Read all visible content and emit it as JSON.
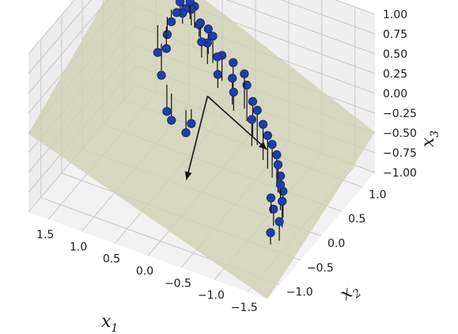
{
  "chart_data": {
    "type": "scatter",
    "subtype": "3d-scatter-with-projection-plane",
    "title": "",
    "axes": {
      "x": {
        "label_base": "x",
        "label_sub": "1",
        "range": [
          -1.8,
          1.8
        ],
        "ticks": [
          "−1.5",
          "−1.0",
          "−0.5",
          "0.0",
          "0.5",
          "1.0",
          "1.5"
        ],
        "tick_values": [
          -1.5,
          -1.0,
          -0.5,
          0.0,
          0.5,
          1.0,
          1.5
        ]
      },
      "y": {
        "label_base": "x",
        "label_sub": "2",
        "range": [
          -1.3,
          1.3
        ],
        "ticks": [
          "−1.0",
          "−0.5",
          "0.0",
          "0.5",
          "1.0"
        ],
        "tick_values": [
          -1.0,
          -0.5,
          0.0,
          0.5,
          1.0
        ]
      },
      "z": {
        "label_base": "x",
        "label_sub": "3",
        "range": [
          -1.0,
          1.0
        ],
        "ticks": [
          "−1.00",
          "−0.75",
          "−0.50",
          "−0.25",
          "0.00",
          "0.25",
          "0.50",
          "0.75",
          "1.00"
        ],
        "tick_values": [
          -1.0,
          -0.75,
          -0.5,
          -0.25,
          0.0,
          0.25,
          0.5,
          0.75,
          1.0
        ]
      }
    },
    "grid": true,
    "colors": {
      "points": "#1f3fa8",
      "plane": "#cfcfb2",
      "arrows": "#111111",
      "pane": "#f2f2f2"
    },
    "points": [
      {
        "x": -1.4,
        "y": -0.3,
        "z": -0.5
      },
      {
        "x": -1.35,
        "y": -0.2,
        "z": -0.45
      },
      {
        "x": -1.3,
        "y": -0.35,
        "z": -0.6
      },
      {
        "x": -1.45,
        "y": -0.45,
        "z": -0.65
      },
      {
        "x": -1.25,
        "y": -0.1,
        "z": -0.35
      },
      {
        "x": -1.2,
        "y": -0.25,
        "z": -0.55
      },
      {
        "x": -1.38,
        "y": -0.55,
        "z": -0.75
      },
      {
        "x": -1.15,
        "y": 0.0,
        "z": -0.3
      },
      {
        "x": -1.0,
        "y": 0.1,
        "z": -0.15
      },
      {
        "x": -0.9,
        "y": 0.15,
        "z": -0.1
      },
      {
        "x": -0.8,
        "y": 0.2,
        "z": -0.02
      },
      {
        "x": -0.65,
        "y": 0.3,
        "z": 0.05
      },
      {
        "x": -0.55,
        "y": 0.35,
        "z": 0.1
      },
      {
        "x": -0.4,
        "y": 0.45,
        "z": 0.2
      },
      {
        "x": -0.3,
        "y": 0.55,
        "z": 0.25
      },
      {
        "x": -0.15,
        "y": 0.5,
        "z": 0.18
      },
      {
        "x": -0.1,
        "y": 0.6,
        "z": 0.3
      },
      {
        "x": 0.1,
        "y": 0.65,
        "z": 0.3
      },
      {
        "x": 0.3,
        "y": 0.75,
        "z": 0.42
      },
      {
        "x": 0.35,
        "y": 0.7,
        "z": 0.35
      },
      {
        "x": 0.4,
        "y": 0.8,
        "z": 0.45
      },
      {
        "x": 0.45,
        "y": 0.72,
        "z": 0.32
      },
      {
        "x": 0.55,
        "y": 0.85,
        "z": 0.45
      },
      {
        "x": 0.6,
        "y": 0.9,
        "z": 0.38
      },
      {
        "x": 0.75,
        "y": 0.95,
        "z": 0.5
      },
      {
        "x": 0.8,
        "y": 1.0,
        "z": 0.55
      },
      {
        "x": 0.85,
        "y": 0.9,
        "z": 0.45
      },
      {
        "x": 0.9,
        "y": 1.05,
        "z": 0.4
      },
      {
        "x": 0.95,
        "y": 1.0,
        "z": 0.5
      },
      {
        "x": 1.0,
        "y": 1.0,
        "z": 0.35
      },
      {
        "x": 1.05,
        "y": 0.95,
        "z": 0.25
      },
      {
        "x": 1.05,
        "y": 0.85,
        "z": 0.15
      },
      {
        "x": 1.0,
        "y": 0.75,
        "z": 0.05
      },
      {
        "x": 1.1,
        "y": 0.7,
        "z": 0.0
      },
      {
        "x": 0.95,
        "y": 0.55,
        "z": -0.15
      },
      {
        "x": 0.65,
        "y": 0.2,
        "z": -0.3
      },
      {
        "x": 0.55,
        "y": 0.15,
        "z": -0.35
      },
      {
        "x": 0.3,
        "y": 0.1,
        "z": -0.4
      },
      {
        "x": 0.25,
        "y": 0.15,
        "z": -0.3
      },
      {
        "x": 0.1,
        "y": 0.55,
        "z": 0.12
      },
      {
        "x": -0.2,
        "y": 0.45,
        "z": 0.05
      },
      {
        "x": -0.6,
        "y": 0.25,
        "z": -0.05
      },
      {
        "x": -1.1,
        "y": 0.05,
        "z": -0.22
      },
      {
        "x": -1.28,
        "y": -0.15,
        "z": -0.42
      },
      {
        "x": 0.7,
        "y": 0.95,
        "z": 0.55
      },
      {
        "x": 0.2,
        "y": 0.7,
        "z": 0.22
      }
    ],
    "arrows": [
      {
        "from": [
          0.1,
          0.3,
          0.0
        ],
        "to": [
          -0.95,
          0.05,
          -0.2
        ]
      },
      {
        "from": [
          0.1,
          0.3,
          0.0
        ],
        "to": [
          -0.05,
          -0.45,
          -0.55
        ]
      }
    ]
  }
}
